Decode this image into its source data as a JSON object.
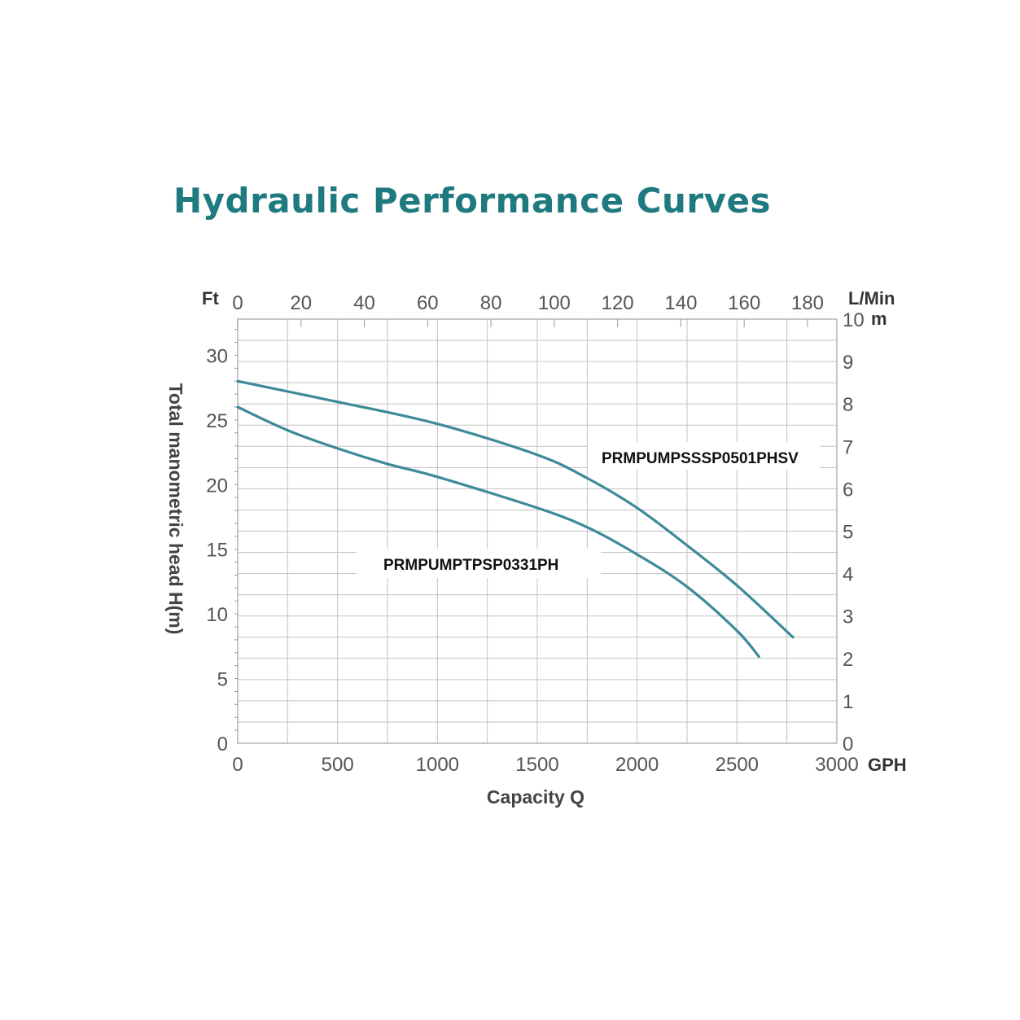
{
  "chart_data": {
    "type": "line",
    "title": "Hydraulic Performance Curves",
    "xlabel": "Capacity Q",
    "ylabel": "Total manometric head H(m)",
    "x_unit": "GPH",
    "x_top_unit": "L/Min",
    "y_left_unit": "Ft",
    "y_right_unit": "m",
    "xlim": [
      0,
      3000
    ],
    "ylim_ft": [
      0,
      32.8
    ],
    "ylim_m": [
      0,
      10
    ],
    "x_ticks": [
      "0",
      "500",
      "1000",
      "1500",
      "2000",
      "2500",
      "3000"
    ],
    "x_top_ticks": [
      "0",
      "20",
      "40",
      "60",
      "80",
      "100",
      "120",
      "140",
      "160",
      "180"
    ],
    "y_left_ticks": [
      "0",
      "5",
      "10",
      "15",
      "20",
      "25",
      "30"
    ],
    "y_right_ticks": [
      "0",
      "1",
      "2",
      "3",
      "4",
      "5",
      "6",
      "7",
      "8",
      "9",
      "10"
    ],
    "series": [
      {
        "name": "PRMPUMPSSSP0501PHSV",
        "color": "#3d8a98",
        "x": [
          0,
          500,
          1000,
          1500,
          1750,
          2000,
          2250,
          2500,
          2780
        ],
        "y": [
          28.0,
          26.4,
          24.7,
          22.3,
          20.5,
          18.2,
          15.3,
          12.2,
          8.2
        ]
      },
      {
        "name": "PRMPUMPTPSP0331PH",
        "color": "#3d8a98",
        "x": [
          0,
          250,
          500,
          750,
          1000,
          1500,
          1750,
          2000,
          2250,
          2500,
          2610
        ],
        "y": [
          26.0,
          24.2,
          22.8,
          21.6,
          20.6,
          18.2,
          16.7,
          14.6,
          12.1,
          8.7,
          6.7
        ]
      }
    ]
  }
}
